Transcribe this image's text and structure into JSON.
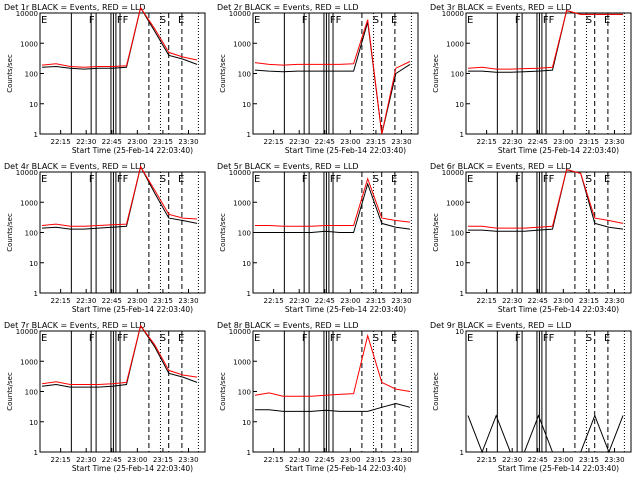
{
  "chart_data": [
    {
      "type": "line",
      "title": "Det 1r BLACK = Events, RED = LLD",
      "xlabel": "Start Time (25-Feb-14 22:03:40)",
      "ylabel": "Counts/sec",
      "xticks": [
        "22:15",
        "22:30",
        "22:45",
        "23:00",
        "23:15",
        "23:30"
      ],
      "yticks": [
        "1",
        "10",
        "100",
        "1000",
        "10000"
      ],
      "ylim": [
        1,
        10000
      ],
      "yscale": "log",
      "markers": [
        "E",
        "F",
        "FF",
        "S",
        "E"
      ],
      "series": [
        {
          "color": "#000000",
          "values": [
            160,
            170,
            150,
            140,
            150,
            150,
            160,
            15000,
            2500,
            400,
            300,
            200
          ]
        },
        {
          "color": "#ff0000",
          "values": [
            190,
            210,
            170,
            160,
            170,
            170,
            180,
            15000,
            3000,
            500,
            350,
            280
          ]
        }
      ]
    },
    {
      "type": "line",
      "title": "Det 2r BLACK = Events, RED = LLD",
      "xlabel": "Start Time (25-Feb-14 22:03:40)",
      "ylabel": "Counts/sec",
      "xticks": [
        "22:15",
        "22:30",
        "22:45",
        "23:00",
        "23:15",
        "23:30"
      ],
      "yticks": [
        "1",
        "10",
        "100",
        "1000",
        "10000"
      ],
      "ylim": [
        1,
        10000
      ],
      "yscale": "log",
      "markers": [
        "E",
        "F",
        "FF",
        "S",
        "E"
      ],
      "series": [
        {
          "color": "#000000",
          "values": [
            130,
            120,
            115,
            120,
            120,
            120,
            120,
            120,
            5000,
            1,
            100,
            200
          ]
        },
        {
          "color": "#ff0000",
          "values": [
            230,
            200,
            190,
            200,
            200,
            200,
            200,
            210,
            6000,
            1,
            150,
            250
          ]
        }
      ]
    },
    {
      "type": "line",
      "title": "Det 3r BLACK = Events, RED = LLD",
      "xlabel": "Start Time (25-Feb-14 22:03:40)",
      "ylabel": "Counts/sec",
      "xticks": [
        "22:15",
        "22:30",
        "22:45",
        "23:00",
        "23:15",
        "23:30"
      ],
      "yticks": [
        "1",
        "10",
        "100",
        "1000",
        "10000"
      ],
      "ylim": [
        1,
        10000
      ],
      "yscale": "log",
      "markers": [
        "E",
        "F",
        "FF",
        "S",
        "E"
      ],
      "series": [
        {
          "color": "#000000",
          "values": [
            120,
            120,
            110,
            110,
            115,
            120,
            130,
            12000,
            9000,
            9000,
            9000,
            9000
          ]
        },
        {
          "color": "#ff0000",
          "values": [
            150,
            160,
            140,
            140,
            145,
            150,
            160,
            12000,
            9000,
            9000,
            9000,
            9000
          ]
        }
      ]
    },
    {
      "type": "line",
      "title": "Det 4r BLACK = Events, RED = LLD",
      "xlabel": "Start Time (25-Feb-14 22:03:40)",
      "ylabel": "Counts/sec",
      "xticks": [
        "22:15",
        "22:30",
        "22:45",
        "23:00",
        "23:15",
        "23:30"
      ],
      "yticks": [
        "1",
        "10",
        "100",
        "1000",
        "10000"
      ],
      "ylim": [
        1,
        10000
      ],
      "yscale": "log",
      "markers": [
        "E",
        "F",
        "FF",
        "S",
        "E"
      ],
      "series": [
        {
          "color": "#000000",
          "values": [
            140,
            150,
            130,
            130,
            140,
            150,
            160,
            15000,
            2000,
            300,
            250,
            200
          ]
        },
        {
          "color": "#ff0000",
          "values": [
            170,
            190,
            160,
            160,
            170,
            180,
            190,
            15000,
            2500,
            400,
            300,
            280
          ]
        }
      ]
    },
    {
      "type": "line",
      "title": "Det 5r BLACK = Events, RED = LLD",
      "xlabel": "Start Time (25-Feb-14 22:03:40)",
      "ylabel": "Counts/sec",
      "xticks": [
        "22:15",
        "22:30",
        "22:45",
        "23:00",
        "23:15",
        "23:30"
      ],
      "yticks": [
        "1",
        "10",
        "100",
        "1000",
        "10000"
      ],
      "ylim": [
        1,
        10000
      ],
      "yscale": "log",
      "markers": [
        "E",
        "F",
        "FF",
        "S",
        "E"
      ],
      "series": [
        {
          "color": "#000000",
          "values": [
            100,
            100,
            100,
            100,
            100,
            110,
            100,
            100,
            4000,
            200,
            150,
            130
          ]
        },
        {
          "color": "#ff0000",
          "values": [
            170,
            170,
            160,
            160,
            160,
            170,
            170,
            170,
            6000,
            300,
            250,
            220
          ]
        }
      ]
    },
    {
      "type": "line",
      "title": "Det 6r BLACK = Events, RED = LLD",
      "xlabel": "Start Time (25-Feb-14 22:03:40)",
      "ylabel": "Counts/sec",
      "xticks": [
        "22:15",
        "22:30",
        "22:45",
        "23:00",
        "23:15",
        "23:30"
      ],
      "yticks": [
        "1",
        "10",
        "100",
        "1000",
        "10000"
      ],
      "ylim": [
        1,
        10000
      ],
      "yscale": "log",
      "markers": [
        "E",
        "F",
        "FF",
        "S",
        "E"
      ],
      "series": [
        {
          "color": "#000000",
          "values": [
            120,
            120,
            110,
            110,
            110,
            120,
            130,
            12000,
            9000,
            200,
            150,
            130
          ]
        },
        {
          "color": "#ff0000",
          "values": [
            160,
            160,
            140,
            140,
            140,
            150,
            160,
            12000,
            9000,
            300,
            250,
            200
          ]
        }
      ]
    },
    {
      "type": "line",
      "title": "Det 7r BLACK = Events, RED = LLD",
      "xlabel": "Start Time (25-Feb-14 22:03:40)",
      "ylabel": "Counts/sec",
      "xticks": [
        "22:15",
        "22:30",
        "22:45",
        "23:00",
        "23:15",
        "23:30"
      ],
      "yticks": [
        "1",
        "10",
        "100",
        "1000",
        "10000"
      ],
      "ylim": [
        1,
        10000
      ],
      "yscale": "log",
      "markers": [
        "E",
        "F",
        "FF",
        "S",
        "E"
      ],
      "series": [
        {
          "color": "#000000",
          "values": [
            150,
            170,
            140,
            140,
            140,
            150,
            170,
            15000,
            3000,
            400,
            300,
            200
          ]
        },
        {
          "color": "#ff0000",
          "values": [
            180,
            210,
            170,
            170,
            170,
            180,
            200,
            15000,
            3500,
            500,
            350,
            300
          ]
        }
      ]
    },
    {
      "type": "line",
      "title": "Det 8r BLACK = Events, RED = LLD",
      "xlabel": "Start Time (25-Feb-14 22:03:40)",
      "ylabel": "Counts/sec",
      "xticks": [
        "22:15",
        "22:30",
        "22:45",
        "23:00",
        "23:15",
        "23:30"
      ],
      "yticks": [
        "1",
        "10",
        "100",
        "1000",
        "10000"
      ],
      "ylim": [
        1,
        10000
      ],
      "yscale": "log",
      "markers": [
        "E",
        "F",
        "FF",
        "S",
        "E"
      ],
      "series": [
        {
          "color": "#000000",
          "values": [
            25,
            25,
            22,
            22,
            22,
            24,
            22,
            22,
            22,
            30,
            40,
            30
          ]
        },
        {
          "color": "#ff0000",
          "values": [
            75,
            90,
            70,
            70,
            70,
            75,
            80,
            85,
            7000,
            200,
            120,
            100
          ]
        }
      ]
    },
    {
      "type": "line",
      "title": "Det 9r BLACK = Events, RED = LLD",
      "xlabel": "Start Time (25-Feb-14 22:03:40)",
      "ylabel": "Counts/sec",
      "xticks": [
        "22:15",
        "22:30",
        "22:45",
        "23:00",
        "23:15",
        "23:30"
      ],
      "yticks": [
        "1",
        "10"
      ],
      "ylim": [
        1,
        10
      ],
      "yscale": "log",
      "markers": [
        "E",
        "F",
        "FF",
        "S",
        "E"
      ],
      "series": [
        {
          "color": "#000000",
          "values": [
            2,
            1,
            2,
            1,
            1,
            2,
            1,
            1,
            1,
            2,
            1,
            2
          ]
        }
      ]
    }
  ]
}
